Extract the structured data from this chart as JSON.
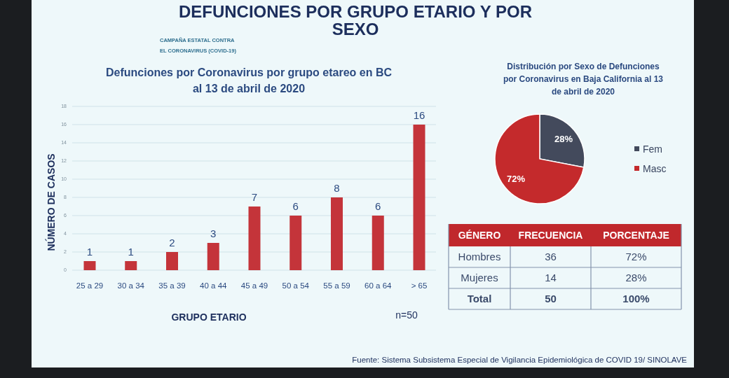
{
  "chart_data": [
    {
      "type": "bar",
      "title": "DEFUNCIONES POR GRUPO ETARIO Y POR SEXO",
      "subtitle": "Defunciones por Coronavirus por grupo etareo en BC al 13 de abril de 2020",
      "xlabel": "GRUPO ETARIO",
      "ylabel": "NÚMERO DE CASOS",
      "categories": [
        "25 a 29",
        "30 a 34",
        "35 a 39",
        "40 a 44",
        "45 a 49",
        "50 a 54",
        "55 a 59",
        "60 a 64",
        "> 65"
      ],
      "values": [
        1,
        1,
        2,
        3,
        7,
        6,
        8,
        6,
        16
      ],
      "color": "#c4343a",
      "ylim": [
        0,
        18
      ],
      "yticks": [
        0,
        2,
        4,
        6,
        8,
        10,
        12,
        14,
        16,
        18
      ],
      "grid": "y",
      "data_labels": true,
      "annotations": [
        "CAMPAÑA ESTATAL CONTRA EL CORONAVIRUS (COVID-19)",
        "n=50",
        "Fuente: Sistema Subsistema Especial de Vigilancia Epidemiológica de COVID 19/ SINOLAVE"
      ]
    },
    {
      "type": "pie",
      "title": "Distribución por Sexo de Defunciones por Coronavirus en Baja California al 13 de abril de 2020",
      "categories": [
        "Fem",
        "Masc"
      ],
      "values": [
        28,
        72
      ],
      "colors": [
        "#434a5c",
        "#c42a2c"
      ],
      "value_labels": [
        "28%",
        "72%"
      ],
      "legend": "right"
    },
    {
      "type": "other",
      "xlabel": "GÉNERO",
      "categories": [
        "Hombres",
        "Mujeres",
        "Total"
      ],
      "series": [
        {
          "name": "FRECUENCIA",
          "values": [
            36,
            14,
            50
          ]
        },
        {
          "name": "PORCENTAJE",
          "values": [
            72,
            28,
            100
          ],
          "value_labels": [
            "72%",
            "28%",
            "100%"
          ]
        }
      ],
      "data_labels": true
    }
  ]
}
